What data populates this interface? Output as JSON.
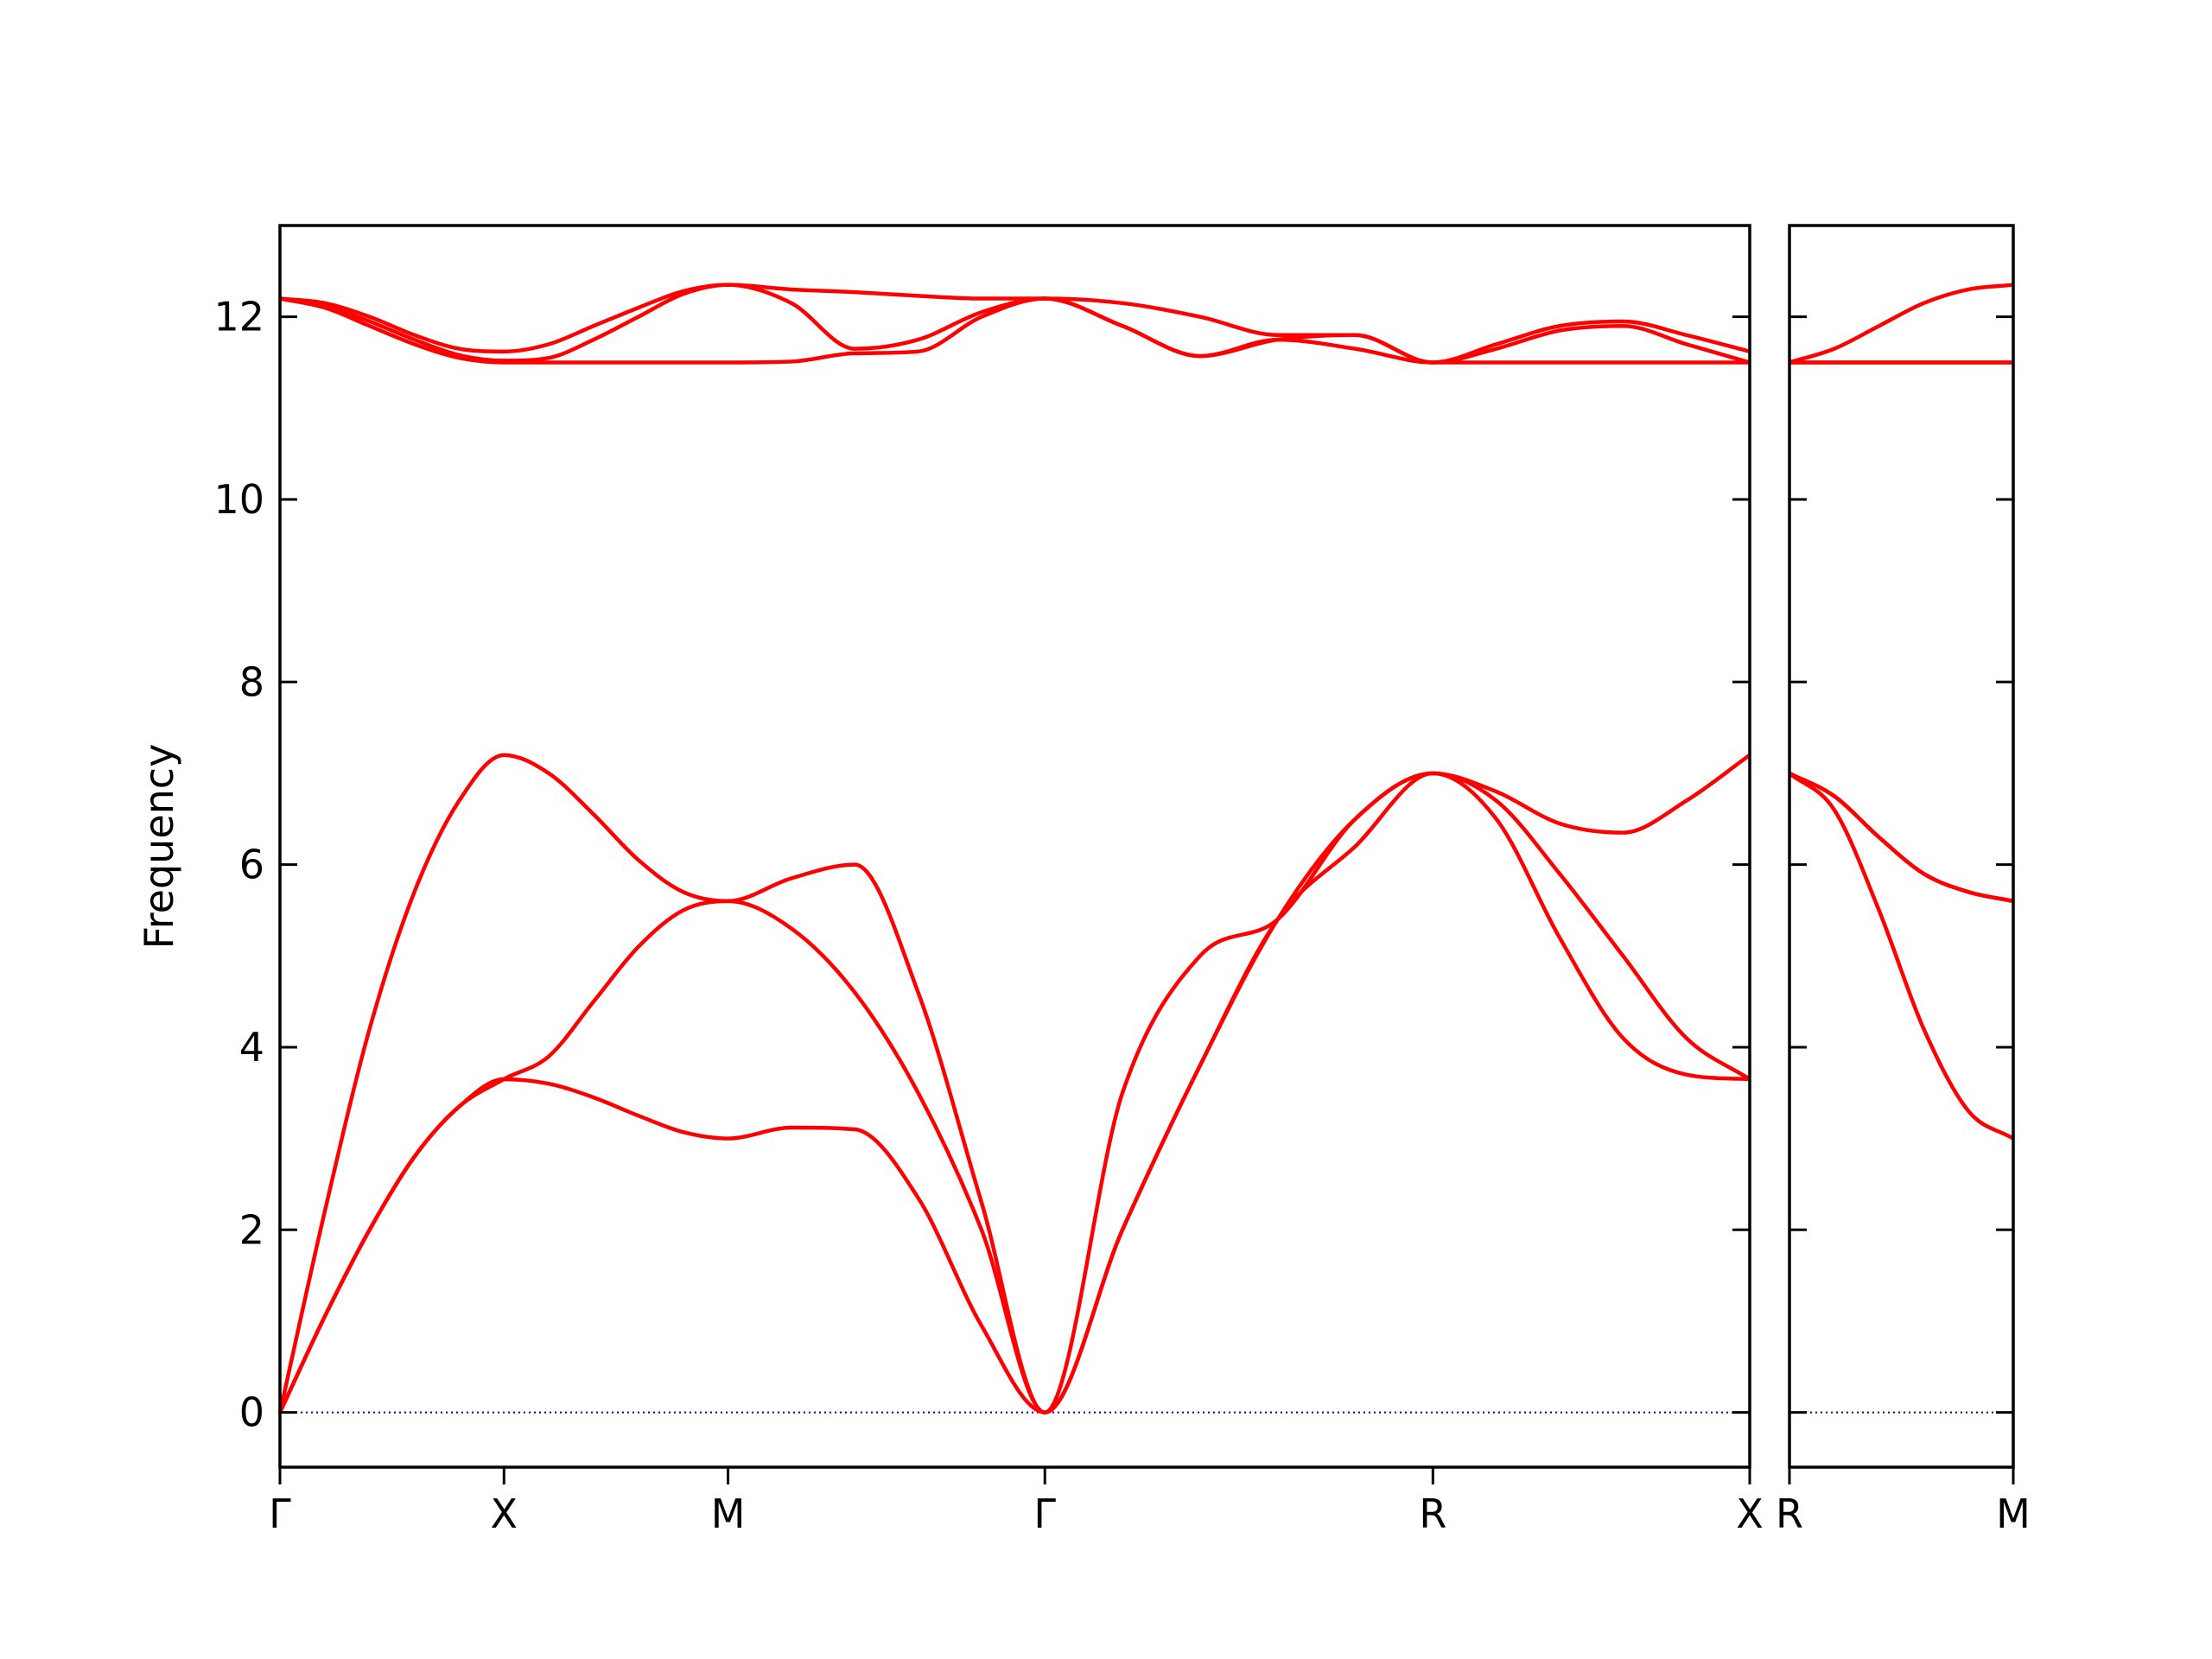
{
  "chart_data": [
    {
      "type": "line",
      "ylabel": "Frequency",
      "x": [
        0,
        0.1,
        0.2,
        0.3,
        0.4,
        0.5,
        0.6,
        0.7,
        0.8,
        0.9,
        1.0,
        1.1414,
        1.2828,
        1.4243,
        1.5657,
        1.7071,
        1.8803,
        2.0535,
        2.2267,
        2.3999,
        2.5731,
        2.7145,
        2.8559,
        2.9974,
        3.1388,
        3.2802
      ],
      "xlim": [
        0,
        3.2802
      ],
      "xticks": [
        {
          "value": 0,
          "label": "Γ"
        },
        {
          "value": 0.5,
          "label": "X"
        },
        {
          "value": 1.0,
          "label": "M"
        },
        {
          "value": 1.7071,
          "label": "Γ"
        },
        {
          "value": 2.5731,
          "label": "R"
        },
        {
          "value": 3.2802,
          "label": "X"
        }
      ],
      "ylim": [
        -0.6,
        13
      ],
      "yticks": [
        0,
        2,
        4,
        6,
        8,
        10,
        12
      ],
      "show_ytick_labels": true,
      "hline": 0,
      "hline_color": "#00008b",
      "series": [
        {
          "color": "#ff0000",
          "values": [
            0,
            1.05,
            2.0,
            2.8,
            3.35,
            3.65,
            3.6,
            3.45,
            3.25,
            3.07,
            3.0,
            3.12,
            3.1,
            2.35,
            0.95,
            0,
            2.0,
            3.8,
            5.4,
            6.2,
            7.0,
            6.5,
            5.2,
            4.1,
            3.7,
            3.65
          ]
        },
        {
          "color": "#ff0000",
          "values": [
            0,
            1.05,
            2.0,
            2.8,
            3.35,
            3.65,
            3.9,
            4.5,
            5.1,
            5.5,
            5.6,
            5.3,
            4.6,
            3.5,
            2.0,
            0,
            2.0,
            3.8,
            5.4,
            6.5,
            7.0,
            6.7,
            5.9,
            5.0,
            4.1,
            3.65
          ]
        },
        {
          "color": "#ff0000",
          "values": [
            0,
            2.2,
            4.2,
            5.7,
            6.7,
            7.2,
            7.0,
            6.55,
            6.05,
            5.7,
            5.6,
            5.85,
            6.0,
            4.6,
            2.3,
            0,
            3.5,
            5.0,
            5.4,
            6.5,
            7.0,
            6.8,
            6.45,
            6.35,
            6.7,
            7.2
          ]
        },
        {
          "color": "#ff0000",
          "values": [
            12.2,
            12.1,
            11.9,
            11.7,
            11.55,
            11.5,
            11.5,
            11.5,
            11.5,
            11.5,
            11.5,
            11.51,
            11.6,
            11.62,
            12.0,
            12.2,
            11.9,
            11.57,
            11.75,
            11.65,
            11.5,
            11.5,
            11.5,
            11.5,
            11.5,
            11.5
          ]
        },
        {
          "color": "#ff0000",
          "values": [
            12.2,
            12.12,
            11.95,
            11.75,
            11.58,
            11.52,
            11.55,
            11.75,
            12.0,
            12.25,
            12.35,
            12.15,
            11.65,
            11.75,
            12.05,
            12.2,
            11.9,
            11.57,
            11.75,
            11.8,
            11.5,
            11.65,
            11.85,
            11.9,
            11.7,
            11.5
          ]
        },
        {
          "color": "#ff0000",
          "values": [
            12.2,
            12.15,
            12.0,
            11.8,
            11.65,
            11.62,
            11.7,
            11.9,
            12.1,
            12.28,
            12.35,
            12.3,
            12.27,
            12.23,
            12.2,
            12.2,
            12.15,
            12.0,
            11.8,
            11.8,
            11.5,
            11.7,
            11.9,
            11.95,
            11.8,
            11.62
          ]
        }
      ]
    },
    {
      "type": "line",
      "x": [
        0,
        0.1,
        0.2,
        0.3,
        0.4,
        0.5
      ],
      "xlim": [
        0,
        0.5
      ],
      "xticks": [
        {
          "value": 0,
          "label": "R"
        },
        {
          "value": 0.5,
          "label": "M"
        }
      ],
      "ylim": [
        -0.6,
        13
      ],
      "yticks": [
        0,
        2,
        4,
        6,
        8,
        10,
        12
      ],
      "show_ytick_labels": false,
      "hline": 0,
      "hline_color": "#00008b",
      "series": [
        {
          "color": "#ff0000",
          "values": [
            7.0,
            6.6,
            5.5,
            4.2,
            3.3,
            3.0
          ]
        },
        {
          "color": "#ff0000",
          "values": [
            7.0,
            6.75,
            6.3,
            5.9,
            5.7,
            5.6
          ]
        },
        {
          "color": "#ff0000",
          "values": [
            7.0,
            6.75,
            6.3,
            5.9,
            5.7,
            5.6
          ]
        },
        {
          "color": "#ff0000",
          "values": [
            11.5,
            11.5,
            11.5,
            11.5,
            11.5,
            11.5
          ]
        },
        {
          "color": "#ff0000",
          "values": [
            11.5,
            11.5,
            11.5,
            11.5,
            11.5,
            11.5
          ]
        },
        {
          "color": "#ff0000",
          "values": [
            11.5,
            11.65,
            11.9,
            12.15,
            12.3,
            12.35
          ]
        }
      ]
    }
  ]
}
